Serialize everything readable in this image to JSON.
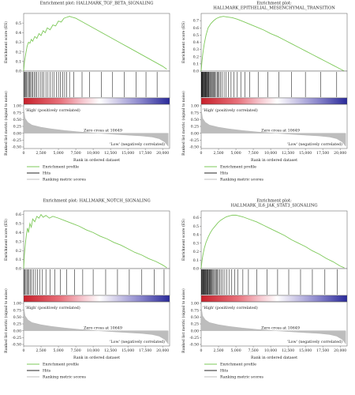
{
  "common": {
    "xlabel": "Rank in ordered dataset",
    "ylabel_es": "Enrichment score (ES)",
    "ylabel_rank": "Ranked list metric (signal to noise)",
    "zero_cross": "Zero cross at 10649",
    "high_label": "'High' (positively correlated)",
    "low_label": "'Low' (negatively correlated)",
    "rank_ticks": [
      "1.00",
      "0.75",
      "0.50",
      "0.25",
      "0.00",
      "-0.25",
      "-0.50"
    ],
    "x_ticks": [
      "0",
      "2,500",
      "5,000",
      "7,500",
      "10,000",
      "12,500",
      "15,000",
      "17,500",
      "20,000"
    ],
    "legend": [
      "Enrichment profile",
      "Hits",
      "Ranking metric scores"
    ],
    "colors": {
      "curve": "#7ec95a",
      "hits": "#111111",
      "red": "#d43a3a",
      "blue": "#3a3fb0",
      "metric": "#bdbdbd"
    }
  },
  "chart_data": [
    {
      "type": "line",
      "title": [
        "Enrichment plot: HALLMARK_TGF_BETA_SIGNALING"
      ],
      "x_range": [
        0,
        21000
      ],
      "ylim": [
        0,
        0.6
      ],
      "y_ticks": [
        "0.5",
        "0.4",
        "0.3",
        "0.2",
        "0.1",
        "0.0"
      ],
      "series": [
        {
          "x": [
            0,
            120,
            300,
            500,
            700,
            900,
            1100,
            1300,
            1600,
            1900,
            2200,
            2500,
            2800,
            3100,
            3400,
            3800,
            4200,
            4600,
            5000,
            5400,
            5800,
            6200,
            6600,
            7000,
            7500,
            8000,
            9000,
            10000,
            11000,
            12000,
            13000,
            14000,
            15000,
            16000,
            17000,
            18000,
            19000,
            20000,
            20600
          ],
          "y": [
            0,
            0.1,
            0.18,
            0.26,
            0.3,
            0.29,
            0.33,
            0.31,
            0.36,
            0.34,
            0.39,
            0.37,
            0.42,
            0.4,
            0.45,
            0.43,
            0.48,
            0.47,
            0.52,
            0.51,
            0.55,
            0.56,
            0.57,
            0.56,
            0.55,
            0.53,
            0.49,
            0.45,
            0.41,
            0.37,
            0.33,
            0.29,
            0.25,
            0.21,
            0.17,
            0.13,
            0.09,
            0.05,
            0.02
          ]
        }
      ],
      "hits": [
        80,
        180,
        300,
        420,
        560,
        700,
        850,
        1000,
        1150,
        1300,
        1500,
        1700,
        1900,
        2150,
        2400,
        2650,
        2900,
        3200,
        3500,
        3800,
        4100,
        4400,
        4700,
        5000,
        5300,
        5600,
        5900,
        6200,
        6600,
        7200,
        8400,
        9500,
        11200,
        12800,
        14500,
        16200,
        17600,
        19200
      ]
    },
    {
      "type": "line",
      "title": [
        "Enrichment plot:",
        "HALLMARK_EPITHELIAL_MESENCHYMAL_TRANSITION"
      ],
      "x_range": [
        0,
        21000
      ],
      "ylim": [
        0,
        0.8
      ],
      "y_ticks": [
        "0.7",
        "0.6",
        "0.5",
        "0.4",
        "0.3",
        "0.2",
        "0.1",
        "0.0"
      ],
      "series": [
        {
          "x": [
            0,
            100,
            250,
            450,
            700,
            1000,
            1400,
            1800,
            2200,
            2700,
            3200,
            3800,
            4500,
            5200,
            6000,
            7000,
            8000,
            9000,
            10000,
            11000,
            12000,
            13000,
            14000,
            15000,
            16000,
            17000,
            18000,
            19000,
            20000,
            20600
          ],
          "y": [
            0,
            0.12,
            0.25,
            0.38,
            0.5,
            0.6,
            0.66,
            0.7,
            0.73,
            0.75,
            0.76,
            0.75,
            0.74,
            0.72,
            0.69,
            0.65,
            0.61,
            0.57,
            0.52,
            0.48,
            0.43,
            0.38,
            0.33,
            0.28,
            0.23,
            0.18,
            0.13,
            0.08,
            0.03,
            0.0
          ]
        }
      ],
      "hits": [
        30,
        80,
        130,
        180,
        230,
        280,
        340,
        400,
        460,
        520,
        580,
        640,
        700,
        780,
        860,
        940,
        1020,
        1100,
        1200,
        1300,
        1400,
        1500,
        1620,
        1740,
        1860,
        2000,
        2150,
        2300,
        2450,
        2600,
        2800,
        3000,
        3300,
        3600,
        3900,
        4300,
        4700,
        5200,
        5700,
        6300,
        7000,
        8200,
        9600,
        11200,
        13000,
        15000,
        17200,
        19500
      ]
    },
    {
      "type": "line",
      "title": [
        "Enrichment plot: HALLMARK_NOTCH_SIGNALING"
      ],
      "x_range": [
        0,
        21000
      ],
      "ylim": [
        0,
        0.64
      ],
      "y_ticks": [
        "0.6",
        "0.5",
        "0.4",
        "0.3",
        "0.2",
        "0.1",
        "0.0"
      ],
      "series": [
        {
          "x": [
            0,
            100,
            250,
            400,
            550,
            700,
            900,
            1100,
            1300,
            1600,
            1900,
            2200,
            2500,
            2800,
            3200,
            3700,
            4200,
            5000,
            6000,
            7000,
            8000,
            9000,
            10000,
            11000,
            12000,
            13000,
            14000,
            15000,
            16000,
            17000,
            18000,
            19000,
            20000,
            20600
          ],
          "y": [
            0,
            0.15,
            0.28,
            0.38,
            0.45,
            0.4,
            0.5,
            0.46,
            0.55,
            0.52,
            0.58,
            0.56,
            0.6,
            0.57,
            0.59,
            0.56,
            0.58,
            0.56,
            0.53,
            0.5,
            0.47,
            0.43,
            0.4,
            0.36,
            0.33,
            0.29,
            0.26,
            0.22,
            0.18,
            0.15,
            0.11,
            0.08,
            0.04,
            0.01
          ]
        }
      ],
      "hits": [
        80,
        200,
        330,
        470,
        620,
        780,
        950,
        1150,
        1400,
        1700,
        2000,
        2300,
        2700,
        3200,
        3800,
        4500,
        5300,
        6200,
        7300,
        8500,
        10000,
        11800,
        13500,
        15200,
        17000,
        18800,
        20200
      ]
    },
    {
      "type": "line",
      "title": [
        "Enrichment plot:",
        "HALLMARK_IL6_JAK_STAT3_SIGNALING"
      ],
      "x_range": [
        0,
        21000
      ],
      "ylim": [
        0,
        0.68
      ],
      "y_ticks": [
        "0.6",
        "0.5",
        "0.4",
        "0.3",
        "0.2",
        "0.1",
        "0.0"
      ],
      "series": [
        {
          "x": [
            0,
            100,
            250,
            450,
            700,
            1000,
            1300,
            1600,
            2000,
            2400,
            2800,
            3200,
            3600,
            4000,
            4500,
            5000,
            5500,
            6000,
            7000,
            8000,
            9000,
            10000,
            11000,
            12000,
            13000,
            14000,
            15000,
            16000,
            17000,
            18000,
            19000,
            20000,
            20600
          ],
          "y": [
            0,
            0.08,
            0.16,
            0.24,
            0.31,
            0.37,
            0.42,
            0.46,
            0.5,
            0.54,
            0.57,
            0.59,
            0.61,
            0.62,
            0.63,
            0.63,
            0.62,
            0.61,
            0.58,
            0.55,
            0.51,
            0.47,
            0.43,
            0.39,
            0.34,
            0.3,
            0.26,
            0.21,
            0.17,
            0.12,
            0.08,
            0.03,
            0.01
          ]
        }
      ],
      "hits": [
        40,
        100,
        160,
        220,
        290,
        360,
        430,
        500,
        580,
        660,
        740,
        820,
        900,
        980,
        1070,
        1160,
        1250,
        1350,
        1450,
        1560,
        1680,
        1800,
        1930,
        2060,
        2200,
        2350,
        2500,
        2700,
        2900,
        3150,
        3400,
        3700,
        4000,
        4400,
        4800,
        5300,
        6000,
        6800,
        8000,
        9500,
        11000,
        12600,
        14300,
        16000,
        17800,
        19600
      ]
    }
  ]
}
